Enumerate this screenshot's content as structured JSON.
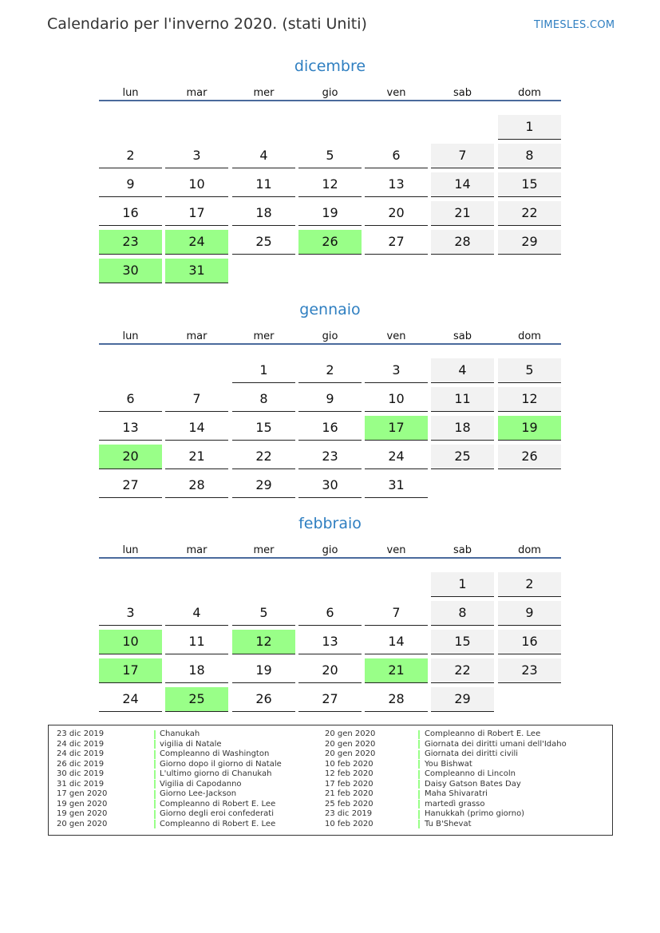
{
  "title": "Calendario per l'inverno 2020. (stati Uniti)",
  "brand": "TIMESLES.COM",
  "colors": {
    "holiday": "#99ff88",
    "weekend": "#f2f2f2",
    "accent": "#2f7fc1"
  },
  "weekdays": [
    "lun",
    "mar",
    "mer",
    "gio",
    "ven",
    "sab",
    "dom"
  ],
  "months": [
    {
      "name": "dicembre",
      "weeks": [
        [
          null,
          null,
          null,
          null,
          null,
          null,
          1
        ],
        [
          2,
          3,
          4,
          5,
          6,
          7,
          8
        ],
        [
          9,
          10,
          11,
          12,
          13,
          14,
          15
        ],
        [
          16,
          17,
          18,
          19,
          20,
          21,
          22
        ],
        [
          23,
          24,
          25,
          26,
          27,
          28,
          29
        ],
        [
          30,
          31,
          null,
          null,
          null,
          null,
          null
        ]
      ],
      "holidays": [
        23,
        24,
        26,
        30,
        31
      ]
    },
    {
      "name": "gennaio",
      "weeks": [
        [
          null,
          null,
          1,
          2,
          3,
          4,
          5
        ],
        [
          6,
          7,
          8,
          9,
          10,
          11,
          12
        ],
        [
          13,
          14,
          15,
          16,
          17,
          18,
          19
        ],
        [
          20,
          21,
          22,
          23,
          24,
          25,
          26
        ],
        [
          27,
          28,
          29,
          30,
          31,
          null,
          null
        ]
      ],
      "holidays": [
        17,
        19,
        20
      ]
    },
    {
      "name": "febbraio",
      "weeks": [
        [
          null,
          null,
          null,
          null,
          null,
          1,
          2
        ],
        [
          3,
          4,
          5,
          6,
          7,
          8,
          9
        ],
        [
          10,
          11,
          12,
          13,
          14,
          15,
          16
        ],
        [
          17,
          18,
          19,
          20,
          21,
          22,
          23
        ],
        [
          24,
          25,
          26,
          27,
          28,
          29,
          null
        ]
      ],
      "holidays": [
        10,
        12,
        17,
        21,
        25
      ]
    }
  ],
  "legend": [
    {
      "date": "23 dic 2019",
      "name": "Chanukah"
    },
    {
      "date": "24 dic 2019",
      "name": "vigilia di Natale"
    },
    {
      "date": "24 dic 2019",
      "name": "Compleanno di Washington"
    },
    {
      "date": "26 dic 2019",
      "name": "Giorno dopo il giorno di Natale"
    },
    {
      "date": "30 dic 2019",
      "name": "L'ultimo giorno di Chanukah"
    },
    {
      "date": "31 dic 2019",
      "name": "Vigilia di Capodanno"
    },
    {
      "date": "17 gen 2020",
      "name": "Giorno Lee-Jackson"
    },
    {
      "date": "19 gen 2020",
      "name": "Compleanno di Robert E. Lee"
    },
    {
      "date": "19 gen 2020",
      "name": "Giorno degli eroi confederati"
    },
    {
      "date": "20 gen 2020",
      "name": "Compleanno di Robert E. Lee"
    },
    {
      "date": "20 gen 2020",
      "name": "Compleanno di Robert E. Lee"
    },
    {
      "date": "20 gen 2020",
      "name": "Giornata dei diritti umani dell'Idaho"
    },
    {
      "date": "20 gen 2020",
      "name": "Giornata dei diritti civili"
    },
    {
      "date": "10 feb 2020",
      "name": "You Bishwat"
    },
    {
      "date": "12 feb 2020",
      "name": "Compleanno di Lincoln"
    },
    {
      "date": "17 feb 2020",
      "name": "Daisy Gatson Bates Day"
    },
    {
      "date": "21 feb 2020",
      "name": "Maha Shivaratri"
    },
    {
      "date": "25 feb 2020",
      "name": "martedì grasso"
    },
    {
      "date": "23 dic 2019",
      "name": "Hanukkah (primo giorno)"
    },
    {
      "date": "10 feb 2020",
      "name": "Tu B'Shevat"
    }
  ]
}
